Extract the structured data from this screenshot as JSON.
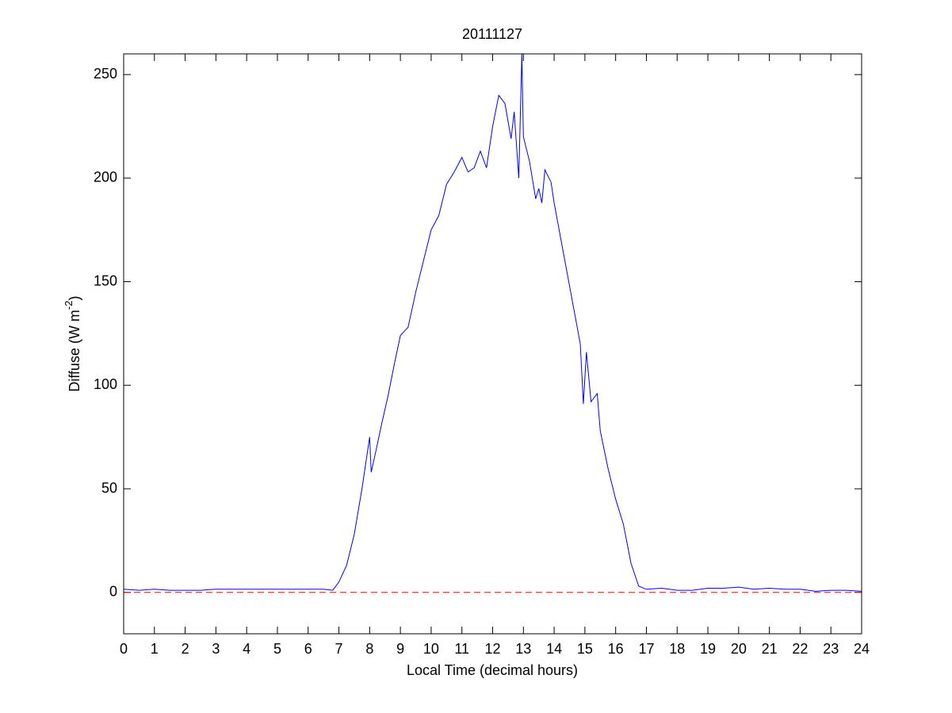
{
  "chart_data": {
    "type": "line",
    "title": "20111127",
    "xlabel": "Local Time (decimal hours)",
    "ylabel": {
      "text": "Diffuse (W m",
      "superscript": "-2",
      "suffix": ")"
    },
    "xlim": [
      0,
      24
    ],
    "xticks": [
      0,
      1,
      2,
      3,
      4,
      5,
      6,
      7,
      8,
      9,
      10,
      11,
      12,
      13,
      14,
      15,
      16,
      17,
      18,
      19,
      20,
      21,
      22,
      23,
      24
    ],
    "ylim": [
      -20,
      260
    ],
    "yticks": [
      0,
      50,
      100,
      150,
      200,
      250
    ],
    "reference_line": {
      "y": 0,
      "color": "#ff0000",
      "style": "dashed"
    },
    "series": [
      {
        "color": "#0000ff",
        "x": [
          0,
          0.5,
          1,
          1.5,
          2,
          2.5,
          3,
          3.5,
          4,
          4.5,
          5,
          5.5,
          6,
          6.5,
          6.8,
          7,
          7.25,
          7.5,
          7.75,
          8,
          8.05,
          8.2,
          8.4,
          8.6,
          8.8,
          9,
          9.25,
          9.5,
          9.75,
          10,
          10.25,
          10.5,
          10.75,
          11,
          11.2,
          11.4,
          11.6,
          11.8,
          12,
          12.2,
          12.4,
          12.6,
          12.7,
          12.85,
          12.95,
          13,
          13.2,
          13.4,
          13.5,
          13.6,
          13.7,
          13.9,
          14,
          14.25,
          14.5,
          14.75,
          14.85,
          14.95,
          15.05,
          15.2,
          15.4,
          15.5,
          15.75,
          16,
          16.25,
          16.5,
          16.75,
          17,
          17.5,
          18,
          18.5,
          19,
          19.5,
          20,
          20.5,
          21,
          21.5,
          22,
          22.5,
          23,
          23.5,
          24
        ],
        "values": [
          1.5,
          1,
          1.5,
          1,
          1,
          1,
          1.5,
          1.5,
          1.5,
          1.5,
          1.5,
          1.5,
          1.5,
          1.5,
          1,
          5,
          13,
          28,
          50,
          75,
          58,
          68,
          82,
          95,
          110,
          124,
          128,
          145,
          160,
          175,
          182,
          197,
          203,
          210,
          203,
          205,
          213,
          205,
          225,
          240,
          236,
          219,
          232,
          200,
          260,
          220,
          208,
          190,
          195,
          188,
          204,
          198,
          188,
          168,
          148,
          128,
          120,
          91,
          116,
          92,
          96,
          78,
          60,
          45,
          33,
          14,
          3,
          1.5,
          2,
          1,
          1,
          2,
          2,
          2.5,
          1.5,
          2,
          1.5,
          1.5,
          0.5,
          1,
          1,
          0.5
        ]
      }
    ]
  }
}
